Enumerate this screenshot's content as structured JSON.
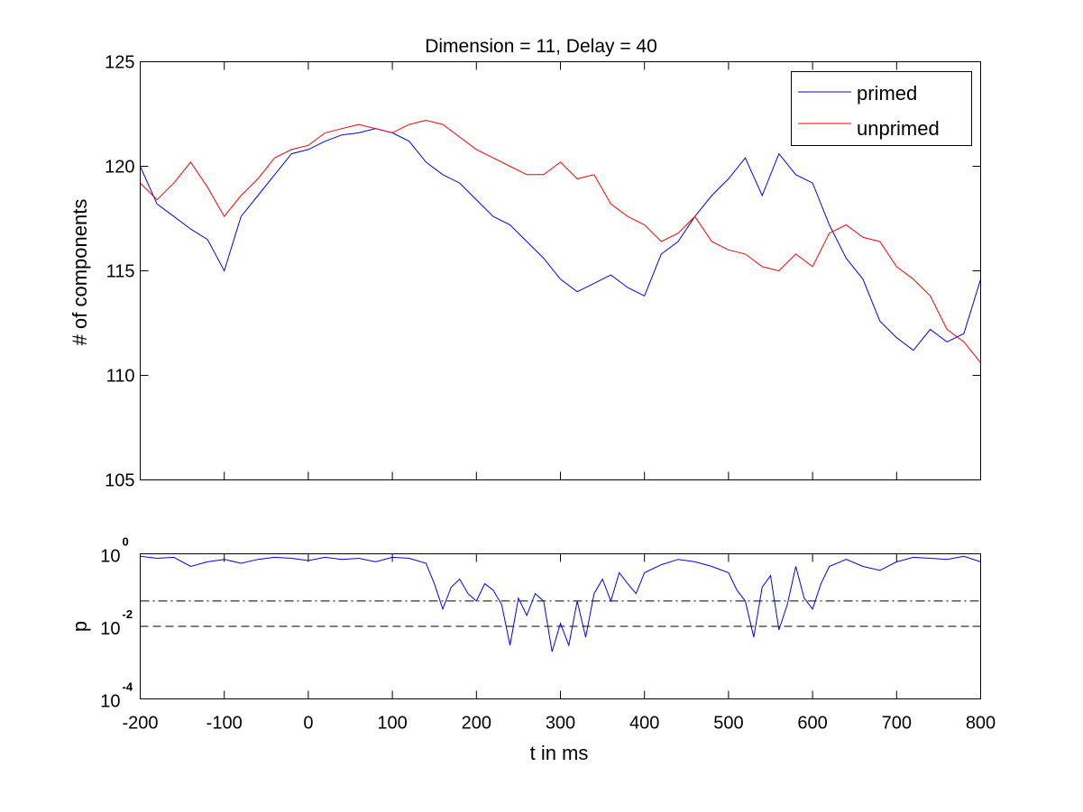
{
  "chart_data": [
    {
      "type": "line",
      "title": "Dimension  = 11, Delay = 40",
      "xlabel": "",
      "ylabel": "# of components",
      "xlim": [
        -200,
        800
      ],
      "ylim": [
        105,
        125
      ],
      "yticks": [
        105,
        110,
        115,
        120,
        125
      ],
      "xticklabels_shown": false,
      "grid": false,
      "legend_position": "top-right",
      "x": [
        -200,
        -180,
        -160,
        -140,
        -120,
        -100,
        -80,
        -60,
        -40,
        -20,
        0,
        20,
        40,
        60,
        80,
        100,
        120,
        140,
        160,
        180,
        200,
        220,
        240,
        260,
        280,
        300,
        320,
        340,
        360,
        380,
        400,
        420,
        440,
        460,
        480,
        500,
        520,
        540,
        560,
        580,
        600,
        620,
        640,
        660,
        680,
        700,
        720,
        740,
        760,
        780,
        800
      ],
      "series": [
        {
          "name": "primed",
          "color": "#0000ff",
          "values": [
            120.0,
            118.2,
            117.6,
            117.0,
            116.5,
            115.0,
            117.6,
            118.6,
            119.6,
            120.6,
            120.8,
            121.2,
            121.5,
            121.6,
            121.8,
            121.6,
            121.2,
            120.2,
            119.6,
            119.2,
            118.4,
            117.6,
            117.2,
            116.4,
            115.6,
            114.6,
            114.0,
            114.4,
            114.8,
            114.2,
            113.8,
            115.8,
            116.4,
            117.6,
            118.6,
            119.4,
            120.4,
            118.6,
            120.6,
            119.6,
            119.2,
            117.2,
            115.6,
            114.6,
            112.6,
            111.8,
            111.2,
            112.2,
            111.6,
            112.0,
            114.6
          ]
        },
        {
          "name": "unprimed",
          "color": "#ff0000",
          "values": [
            119.2,
            118.4,
            119.2,
            120.2,
            119.0,
            117.6,
            118.6,
            119.4,
            120.4,
            120.8,
            121.0,
            121.6,
            121.8,
            122.0,
            121.8,
            121.6,
            122.0,
            122.2,
            122.0,
            121.4,
            120.8,
            120.4,
            120.0,
            119.6,
            119.6,
            120.2,
            119.4,
            119.6,
            118.2,
            117.6,
            117.2,
            116.4,
            116.8,
            117.6,
            116.4,
            116.0,
            115.8,
            115.2,
            115.0,
            115.8,
            115.2,
            116.8,
            117.2,
            116.6,
            116.4,
            115.2,
            114.6,
            113.8,
            112.2,
            111.6,
            110.6
          ]
        }
      ]
    },
    {
      "type": "line",
      "title": "",
      "xlabel": "t in ms",
      "ylabel": "p",
      "xlim": [
        -200,
        800
      ],
      "ylim": [
        0.0001,
        1
      ],
      "yscale": "log",
      "xticks": [
        -200,
        -100,
        0,
        100,
        200,
        300,
        400,
        500,
        600,
        700,
        800
      ],
      "yticks": [
        {
          "base": "10",
          "exponent": "-4",
          "value": 0.0001
        },
        {
          "base": "10",
          "exponent": "-2",
          "value": 0.01
        },
        {
          "base": "10",
          "exponent": "0",
          "value": 1
        }
      ],
      "grid": false,
      "reference_lines": [
        {
          "y": 0.05,
          "style": "dash-dot",
          "color": "#000000"
        },
        {
          "y": 0.01,
          "style": "dashed",
          "color": "#000000"
        }
      ],
      "x": [
        -200,
        -180,
        -160,
        -140,
        -120,
        -100,
        -80,
        -60,
        -40,
        -20,
        0,
        20,
        40,
        60,
        80,
        100,
        120,
        140,
        150,
        160,
        170,
        180,
        190,
        200,
        210,
        220,
        230,
        240,
        250,
        260,
        270,
        280,
        290,
        300,
        310,
        320,
        330,
        340,
        350,
        360,
        370,
        380,
        390,
        400,
        420,
        440,
        460,
        480,
        500,
        510,
        520,
        530,
        540,
        550,
        560,
        570,
        580,
        590,
        600,
        610,
        620,
        640,
        660,
        680,
        700,
        720,
        740,
        760,
        780,
        800
      ],
      "series": [
        {
          "name": "",
          "color": "#0000ff",
          "values": [
            0.85,
            0.75,
            0.8,
            0.45,
            0.6,
            0.7,
            0.55,
            0.7,
            0.8,
            0.75,
            0.65,
            0.8,
            0.7,
            0.75,
            0.6,
            0.8,
            0.75,
            0.55,
            0.15,
            0.03,
            0.12,
            0.2,
            0.08,
            0.05,
            0.15,
            0.1,
            0.04,
            0.003,
            0.06,
            0.02,
            0.08,
            0.05,
            0.002,
            0.012,
            0.003,
            0.05,
            0.005,
            0.08,
            0.2,
            0.05,
            0.3,
            0.15,
            0.08,
            0.3,
            0.5,
            0.7,
            0.6,
            0.45,
            0.3,
            0.1,
            0.05,
            0.005,
            0.12,
            0.25,
            0.008,
            0.04,
            0.45,
            0.06,
            0.03,
            0.15,
            0.45,
            0.7,
            0.45,
            0.35,
            0.6,
            0.8,
            0.75,
            0.7,
            0.85,
            0.6
          ]
        }
      ]
    }
  ]
}
